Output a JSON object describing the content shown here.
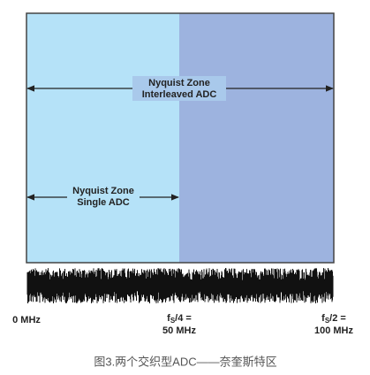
{
  "zones": [
    {
      "title": "Nyquist Zone",
      "subtitle": "Interleaved ADC"
    },
    {
      "title": "Nyquist Zone",
      "subtitle": "Single ADC"
    }
  ],
  "axis_labels": [
    {
      "text": "0 MHz"
    },
    {
      "f": "f",
      "sub": "S",
      "rest": "/4 =",
      "value": "50 MHz"
    },
    {
      "f": "f",
      "sub": "S",
      "rest": "/2 =",
      "value": "100 MHz"
    }
  ],
  "caption": "图3.两个交织型ADC——奈奎斯特区"
}
